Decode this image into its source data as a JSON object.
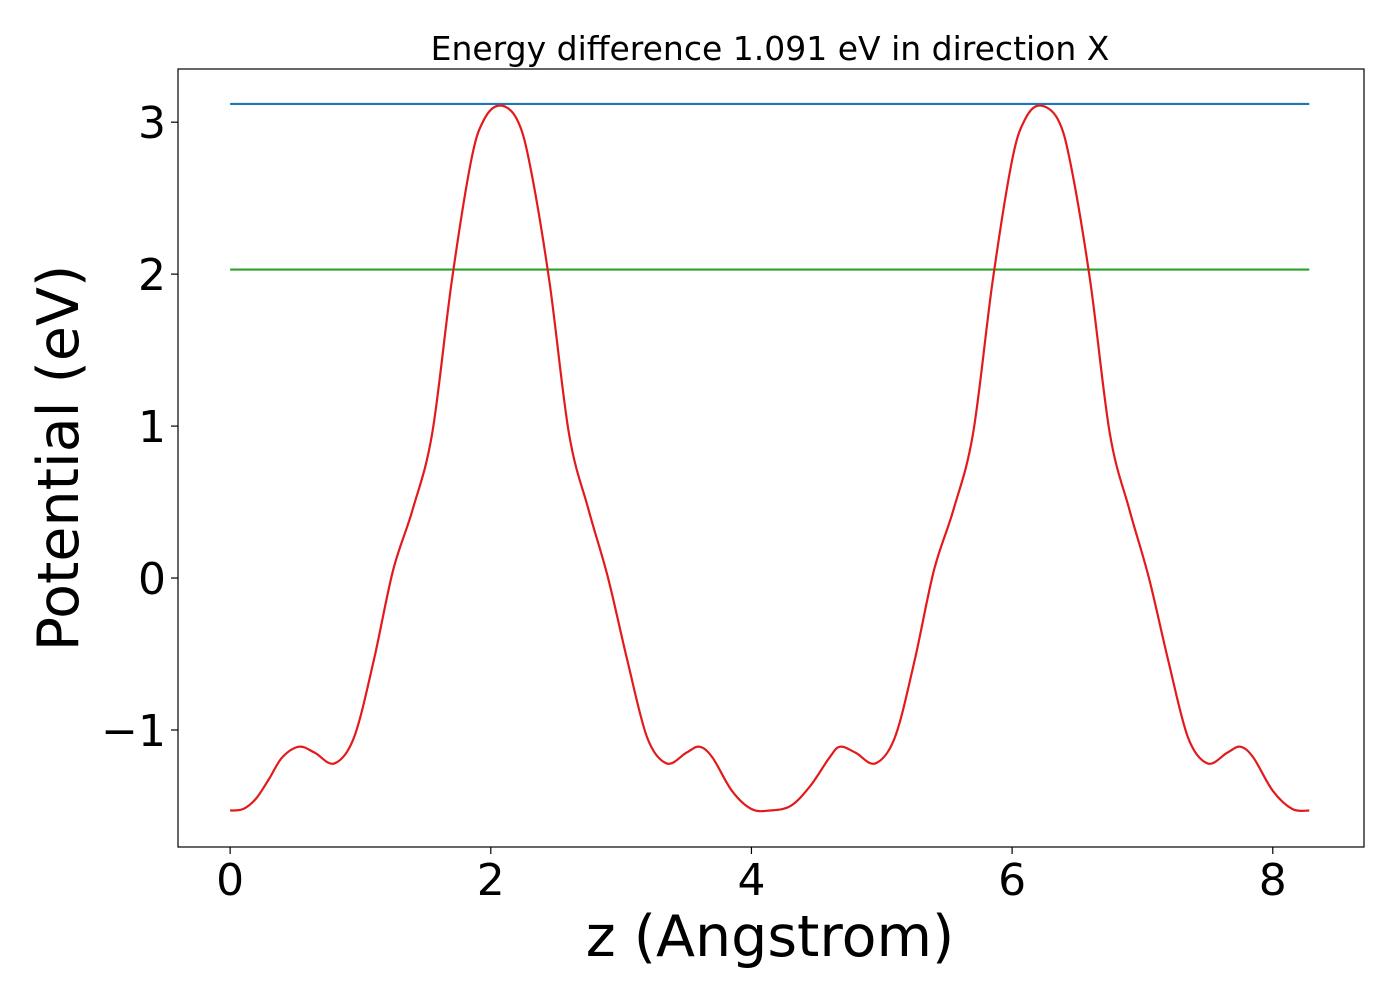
{
  "chart_data": {
    "type": "line",
    "title": "Energy difference 1.091 eV in direction X",
    "xlabel": "z (Angstrom)",
    "ylabel": "Potential (eV)",
    "xlim": [
      -0.4,
      8.7
    ],
    "ylim": [
      -1.77,
      3.35
    ],
    "xticks": [
      0,
      2,
      4,
      6,
      8
    ],
    "xtick_labels": [
      "0",
      "2",
      "4",
      "6",
      "8"
    ],
    "yticks": [
      -1,
      0,
      1,
      2,
      3
    ],
    "ytick_labels": [
      "−1",
      "0",
      "1",
      "2",
      "3"
    ],
    "grid": false,
    "legend": "none",
    "series": [
      {
        "color": "#1f77b4",
        "x": [
          0,
          8.28
        ],
        "y": [
          3.12,
          3.12
        ]
      },
      {
        "color": "#2ca02c",
        "x": [
          0,
          8.28
        ],
        "y": [
          2.03,
          2.03
        ]
      },
      {
        "color": "#e31a1c",
        "x": [
          0,
          0.1,
          0.2,
          0.3,
          0.4,
          0.53,
          0.65,
          0.8,
          0.95,
          1.1,
          1.25,
          1.4,
          1.55,
          1.7,
          1.85,
          1.95,
          2.07,
          2.2,
          2.3,
          2.45,
          2.6,
          2.75,
          2.9,
          3.05,
          3.2,
          3.35,
          3.5,
          3.6,
          3.7,
          3.85,
          4.0,
          4.14,
          4.3,
          4.45,
          4.6,
          4.68,
          4.8,
          4.95,
          5.1,
          5.25,
          5.4,
          5.55,
          5.7,
          5.85,
          6.0,
          6.1,
          6.21,
          6.35,
          6.45,
          6.6,
          6.75,
          6.9,
          7.05,
          7.2,
          7.35,
          7.5,
          7.65,
          7.75,
          7.85,
          8.0,
          8.15,
          8.28
        ],
        "y": [
          -1.53,
          -1.52,
          -1.45,
          -1.32,
          -1.18,
          -1.11,
          -1.15,
          -1.22,
          -1.05,
          -0.55,
          0.05,
          0.45,
          0.95,
          1.95,
          2.75,
          3.02,
          3.11,
          3.02,
          2.72,
          1.95,
          0.95,
          0.45,
          0.0,
          -0.55,
          -1.05,
          -1.22,
          -1.15,
          -1.11,
          -1.18,
          -1.4,
          -1.52,
          -1.53,
          -1.5,
          -1.37,
          -1.18,
          -1.11,
          -1.15,
          -1.22,
          -1.05,
          -0.55,
          0.05,
          0.45,
          0.95,
          1.95,
          2.75,
          3.02,
          3.11,
          3.02,
          2.72,
          1.95,
          0.95,
          0.45,
          0.0,
          -0.55,
          -1.05,
          -1.22,
          -1.15,
          -1.11,
          -1.18,
          -1.4,
          -1.52,
          -1.53
        ]
      }
    ]
  }
}
